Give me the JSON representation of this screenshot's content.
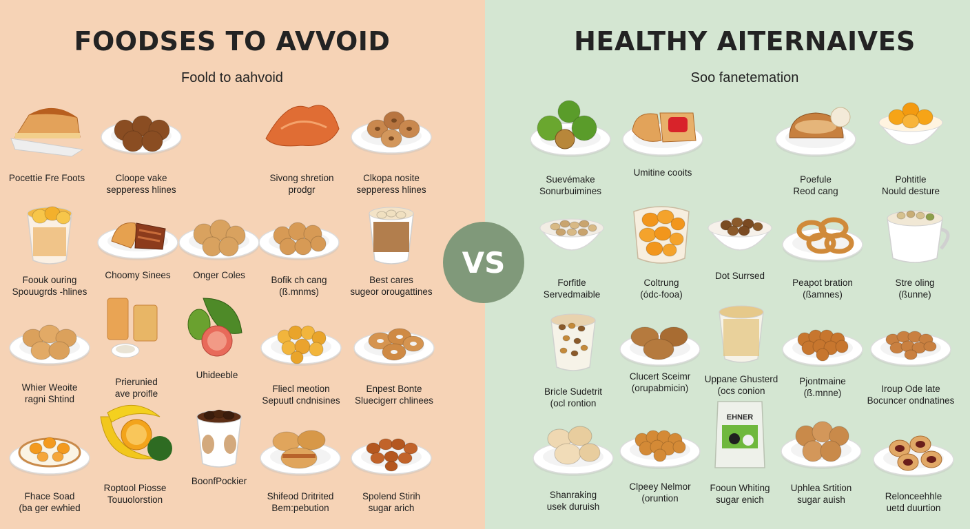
{
  "left": {
    "title": "FOODSES TO AVVOID",
    "subtitle": "Foold to aahvoid",
    "items": [
      {
        "lines": [
          "Pocettie Fre Foots"
        ],
        "icon": "pie-slice-icon"
      },
      {
        "lines": [
          "Cloope vake",
          "sepperess hlines"
        ],
        "icon": "muffins-icon"
      },
      {
        "lines": [
          "Sivong shretion",
          "prodgr"
        ],
        "icon": "croissant-icon"
      },
      {
        "lines": [
          "Clkopa nosite",
          "sepperess hlines"
        ],
        "icon": "donuts-icon"
      },
      {
        "lines": [
          "Foouk ouring",
          "Spouugrds -hlines"
        ],
        "icon": "fruit-cup-icon"
      },
      {
        "lines": [
          "Choomy Sinees"
        ],
        "icon": "pastry-plate-icon"
      },
      {
        "lines": [
          "Onger Coles"
        ],
        "icon": "cookies-icon"
      },
      {
        "lines": [
          "Bofik ch cang",
          "(ß.mnms)"
        ],
        "icon": "nuggets-icon"
      },
      {
        "lines": [
          "Best cares",
          "sugeor orougattines"
        ],
        "icon": "pudding-cup-icon"
      },
      {
        "lines": [
          "Whier Weoite",
          "ragni Shtind"
        ],
        "icon": "bread-rolls-icon"
      },
      {
        "lines": [
          "Prierunied",
          "ave proifle"
        ],
        "icon": "drinks-icon"
      },
      {
        "lines": [
          "Uhideeble"
        ],
        "icon": "produce-icon"
      },
      {
        "lines": [
          "Fliecl meotion",
          "Sepuutl cndnisines"
        ],
        "icon": "fried-bites-icon"
      },
      {
        "lines": [
          "Enpest Bonte",
          "Sluecigerr chlinees"
        ],
        "icon": "bagels-icon"
      },
      {
        "lines": [
          "Fhace Soad",
          "(ba ger ewhied"
        ],
        "icon": "egg-plate-icon"
      },
      {
        "lines": [
          "Roptool Piosse",
          "Touuolorstion"
        ],
        "icon": "banana-orange-icon"
      },
      {
        "lines": [
          "BoonfPockier"
        ],
        "icon": "snack-cup-icon"
      },
      {
        "lines": [
          "Shifeod Dritrited",
          "Bem:pebution"
        ],
        "icon": "sandwich-icon"
      },
      {
        "lines": [
          "Spolend Stirih",
          "sugar arich"
        ],
        "icon": "fried-chicken-icon"
      }
    ]
  },
  "vs_label": "VS",
  "right": {
    "title": "HEALTHY AITERNAIVES",
    "subtitle": "Soo fanetemation",
    "items": [
      {
        "lines": [
          "Suevémake",
          "Sonurbuimines"
        ],
        "icon": "limes-icon"
      },
      {
        "lines": [
          "Umitine cooits"
        ],
        "icon": "bread-jam-icon"
      },
      {
        "lines": [
          "Poefule",
          "Reod cang"
        ],
        "icon": "bread-loaf-icon"
      },
      {
        "lines": [
          "Pohtitle",
          "Nould desture"
        ],
        "icon": "orange-bowl-icon"
      },
      {
        "lines": [
          "Forfitle",
          "Servedmaible"
        ],
        "icon": "nuts-plate-icon"
      },
      {
        "lines": [
          "Coltrung",
          "(ódc-fooa)"
        ],
        "icon": "apricot-jar-icon"
      },
      {
        "lines": [
          "Dot Surrsed"
        ],
        "icon": "hazelnut-bowl-icon"
      },
      {
        "lines": [
          "Peapot bration",
          "(ßamnes)"
        ],
        "icon": "pretzels-icon"
      },
      {
        "lines": [
          "Stre oling",
          "(ßunne)"
        ],
        "icon": "pistachio-cup-icon"
      },
      {
        "lines": [
          "Bricle Sudetrit",
          "(ocl rontion"
        ],
        "icon": "trail-mix-icon"
      },
      {
        "lines": [
          "Clucert Sceimr",
          "(orupabmicin)"
        ],
        "icon": "oat-cookies-icon"
      },
      {
        "lines": [
          "Uppane Ghusterd",
          "(ocs conion"
        ],
        "icon": "granola-cup-icon"
      },
      {
        "lines": [
          "Pjontmaine",
          "(ß.mnne)"
        ],
        "icon": "roasted-bites-icon"
      },
      {
        "lines": [
          "Iroup Ode late",
          "Bocuncer ondnatines"
        ],
        "icon": "almonds-icon"
      },
      {
        "lines": [
          "Shanraking",
          "usek duruish"
        ],
        "icon": "buns-icon"
      },
      {
        "lines": [
          "Clpeey Nelmor",
          "(oruntion"
        ],
        "icon": "roast-nuts-icon"
      },
      {
        "lines": [
          "Fooun Whiting",
          "sugar enich"
        ],
        "icon": "snack-bag-icon"
      },
      {
        "lines": [
          "Uphlea Srtition",
          "sugar auish"
        ],
        "icon": "sesame-balls-icon"
      },
      {
        "lines": [
          "Relonceehhle",
          "uetd duurtion"
        ],
        "icon": "jam-cookies-icon"
      }
    ],
    "bag_label": "EHNER"
  }
}
